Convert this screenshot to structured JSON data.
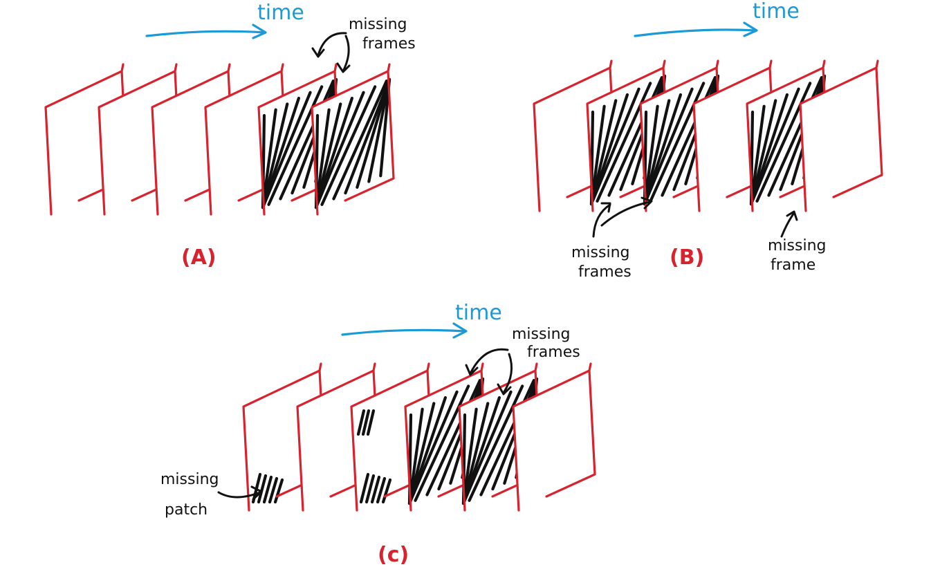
{
  "panels": {
    "a": {
      "label": "(A)",
      "axis_label": "time",
      "annotation": [
        "missing",
        "frames"
      ],
      "frames": [
        "present",
        "present",
        "present",
        "present",
        "missing",
        "missing"
      ]
    },
    "b": {
      "label": "(B)",
      "axis_label": "time",
      "annotation_left": [
        "missing",
        "frames"
      ],
      "annotation_right": [
        "missing",
        "frame"
      ],
      "frames": [
        "present",
        "missing",
        "missing",
        "present",
        "missing",
        "present"
      ]
    },
    "c": {
      "label": "(c)",
      "axis_label": "time",
      "annotation": [
        "missing",
        "frames"
      ],
      "patch_annotation": [
        "missing",
        "patch"
      ],
      "frames": [
        "patch",
        "present",
        "patch",
        "missing",
        "missing",
        "present"
      ]
    }
  },
  "colors": {
    "frame": "#d8232f",
    "time_arrow": "#1a9ad6",
    "hatch": "#111111"
  }
}
